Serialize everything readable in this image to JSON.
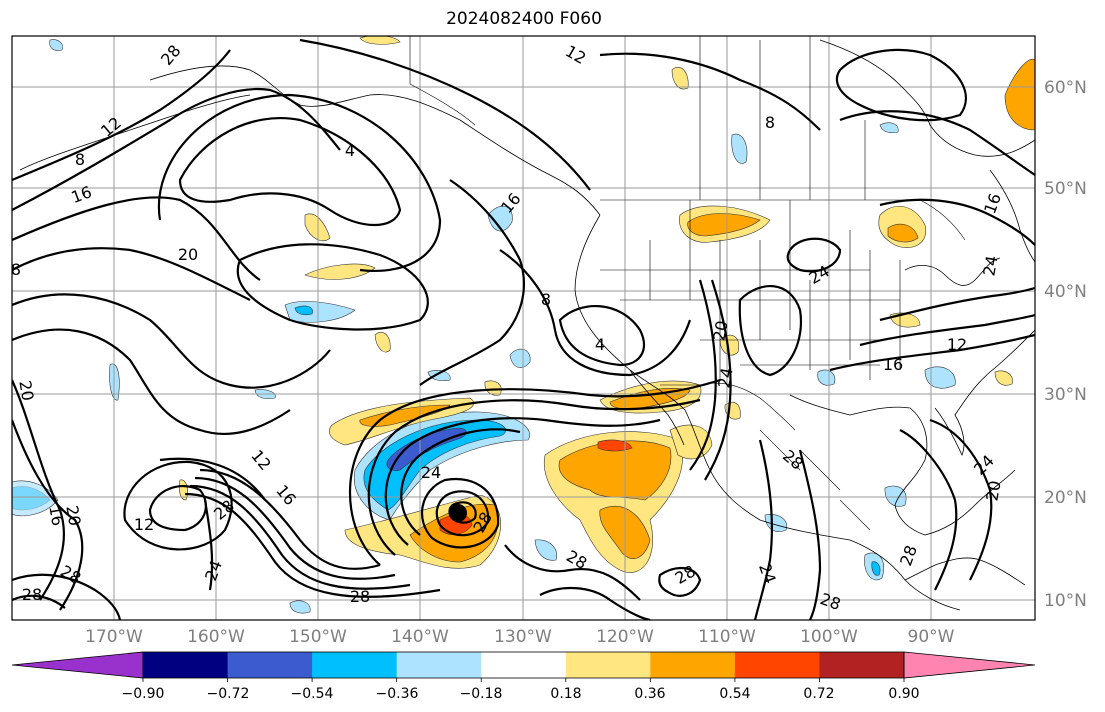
{
  "title": "2024082400 F060",
  "longitude_labels": [
    "170°W",
    "160°W",
    "150°W",
    "140°W",
    "130°W",
    "120°W",
    "110°W",
    "100°W",
    "90°W"
  ],
  "latitude_labels": [
    "60°N",
    "50°N",
    "40°N",
    "30°N",
    "20°N",
    "10°N"
  ],
  "colorbar": {
    "labels": [
      "−0.90",
      "−0.72",
      "−0.54",
      "−0.36",
      "−0.18",
      "0.18",
      "0.36",
      "0.54",
      "0.72",
      "0.90"
    ],
    "colors": {
      "under": "#9932cc",
      "bins": [
        "#000080",
        "#3b5bcf",
        "#00bfff",
        "#aee3ff",
        "#ffffff",
        "#ffe680",
        "#ffa500",
        "#ff4500",
        "#b22222"
      ],
      "over": "#ff85b0"
    }
  },
  "contour_labels": [
    {
      "name": "contour-label-28-nw",
      "text": "28"
    },
    {
      "name": "contour-label-12-nw",
      "text": "12"
    },
    {
      "name": "contour-label-8-nw",
      "text": "8"
    },
    {
      "name": "contour-label-16-nw",
      "text": "16"
    },
    {
      "name": "contour-label-20-w",
      "text": "20"
    },
    {
      "name": "contour-label-8-w",
      "text": "8"
    },
    {
      "name": "contour-label-4-goa",
      "text": "4"
    },
    {
      "name": "contour-label-12-n",
      "text": "12"
    },
    {
      "name": "contour-label-8-ne",
      "text": "8"
    },
    {
      "name": "contour-label-16-coast",
      "text": "16"
    },
    {
      "name": "contour-label-8-pac",
      "text": "8"
    },
    {
      "name": "contour-label-4-pac",
      "text": "4"
    },
    {
      "name": "contour-label-20-sw",
      "text": "20"
    },
    {
      "name": "contour-label-24-sw",
      "text": "24"
    },
    {
      "name": "contour-label-24-plains",
      "text": "24"
    },
    {
      "name": "contour-label-16-ne",
      "text": "16"
    },
    {
      "name": "contour-label-24-east",
      "text": "24"
    },
    {
      "name": "contour-label-16-se",
      "text": "16"
    },
    {
      "name": "contour-label-12-se",
      "text": "12"
    },
    {
      "name": "contour-label-24-gulf",
      "text": "24"
    },
    {
      "name": "contour-label-20-gulf",
      "text": "20"
    },
    {
      "name": "contour-label-20-wsw",
      "text": "20"
    },
    {
      "name": "contour-label-16-wsw",
      "text": "16"
    },
    {
      "name": "contour-label-20-wsw2",
      "text": "20"
    },
    {
      "name": "contour-label-28-sw",
      "text": "28"
    },
    {
      "name": "contour-label-28-sw2",
      "text": "28"
    },
    {
      "name": "contour-label-12-trop",
      "text": "12"
    },
    {
      "name": "contour-label-28-trop",
      "text": "28"
    },
    {
      "name": "contour-label-24-trop",
      "text": "24"
    },
    {
      "name": "contour-label-12-band",
      "text": "12"
    },
    {
      "name": "contour-label-16-band",
      "text": "16"
    },
    {
      "name": "contour-label-28-band",
      "text": "28"
    },
    {
      "name": "contour-label-24-storm",
      "text": "24"
    },
    {
      "name": "contour-label-28-storm",
      "text": "28"
    },
    {
      "name": "contour-label-28-s1",
      "text": "28"
    },
    {
      "name": "contour-label-28-s2",
      "text": "28"
    },
    {
      "name": "contour-label-28-mex",
      "text": "28"
    },
    {
      "name": "contour-label-24-mex",
      "text": "24"
    },
    {
      "name": "contour-label-28-s3",
      "text": "28"
    },
    {
      "name": "contour-label-28-s4",
      "text": "28"
    }
  ]
}
